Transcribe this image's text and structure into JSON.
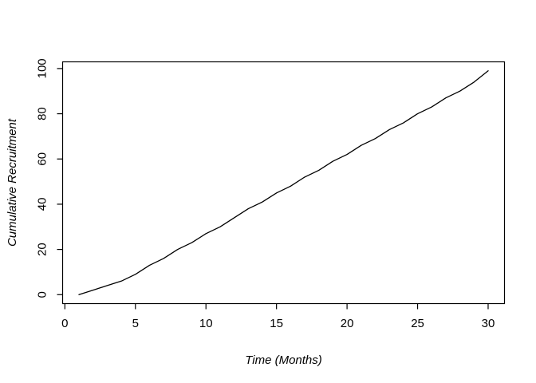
{
  "figure": {
    "background": "#ffffff",
    "foreground": "#000000"
  },
  "chart_data": {
    "type": "line",
    "title": "",
    "xlabel": "Time (Months)",
    "ylabel": "Cumulative Recruitment",
    "x": [
      1,
      2,
      3,
      4,
      5,
      6,
      7,
      8,
      9,
      10,
      11,
      12,
      13,
      14,
      15,
      16,
      17,
      18,
      19,
      20,
      21,
      22,
      23,
      24,
      25,
      26,
      27,
      28,
      29,
      30
    ],
    "y": [
      0,
      2,
      4,
      6,
      9,
      13,
      16,
      20,
      23,
      27,
      30,
      34,
      38,
      41,
      45,
      48,
      52,
      55,
      59,
      62,
      66,
      69,
      73,
      76,
      80,
      83,
      87,
      90,
      94,
      99
    ],
    "xticks": [
      0,
      5,
      10,
      15,
      20,
      25,
      30
    ],
    "yticks": [
      0,
      20,
      40,
      60,
      80,
      100
    ],
    "xlim": [
      -0.16,
      31.16
    ],
    "ylim": [
      -3.96,
      102.96
    ],
    "line_color": "#000000",
    "axis_color": "#000000",
    "background": "#ffffff",
    "grid": false,
    "markers": "none",
    "legend": "none"
  }
}
